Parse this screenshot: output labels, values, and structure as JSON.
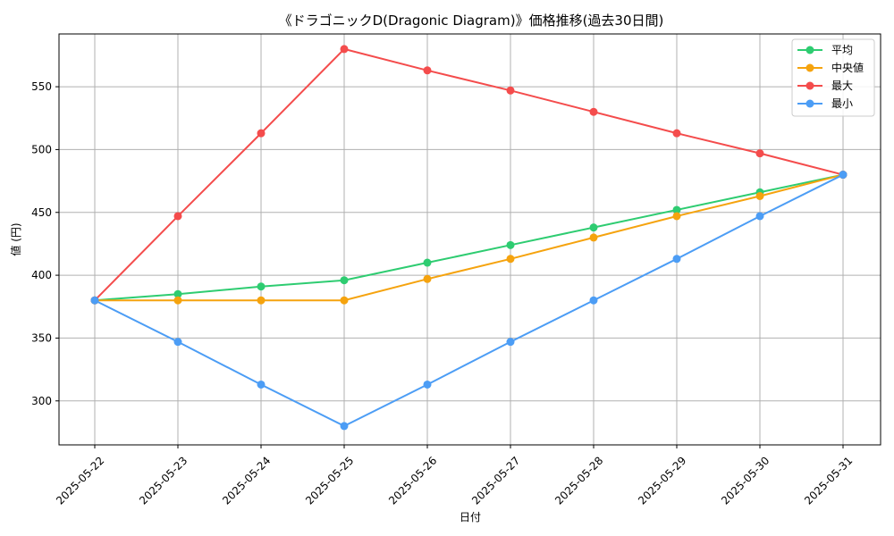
{
  "chart_data": {
    "type": "line",
    "title": "《ドラゴニックD(Dragonic Diagram)》価格推移(過去30日間)",
    "xlabel": "日付",
    "ylabel": "値 (円)",
    "categories": [
      "2025-05-22",
      "2025-05-23",
      "2025-05-24",
      "2025-05-25",
      "2025-05-26",
      "2025-05-27",
      "2025-05-28",
      "2025-05-29",
      "2025-05-30",
      "2025-05-31"
    ],
    "ylim": [
      265,
      592
    ],
    "yticks": [
      300,
      350,
      400,
      450,
      500,
      550
    ],
    "grid": true,
    "legend_position": "top-right",
    "series": [
      {
        "name": "平均",
        "color": "#2ecc71",
        "values": [
          380,
          385,
          391,
          396,
          410,
          424,
          438,
          452,
          466,
          480
        ]
      },
      {
        "name": "中央値",
        "color": "#f5a30e",
        "values": [
          380,
          380,
          380,
          380,
          397,
          413,
          430,
          447,
          463,
          480
        ]
      },
      {
        "name": "最大",
        "color": "#f44c4c",
        "values": [
          380,
          447,
          513,
          580,
          563,
          547,
          530,
          513,
          497,
          480
        ]
      },
      {
        "name": "最小",
        "color": "#4c9df5",
        "values": [
          380,
          347,
          313,
          280,
          313,
          347,
          380,
          413,
          447,
          480
        ]
      }
    ]
  }
}
